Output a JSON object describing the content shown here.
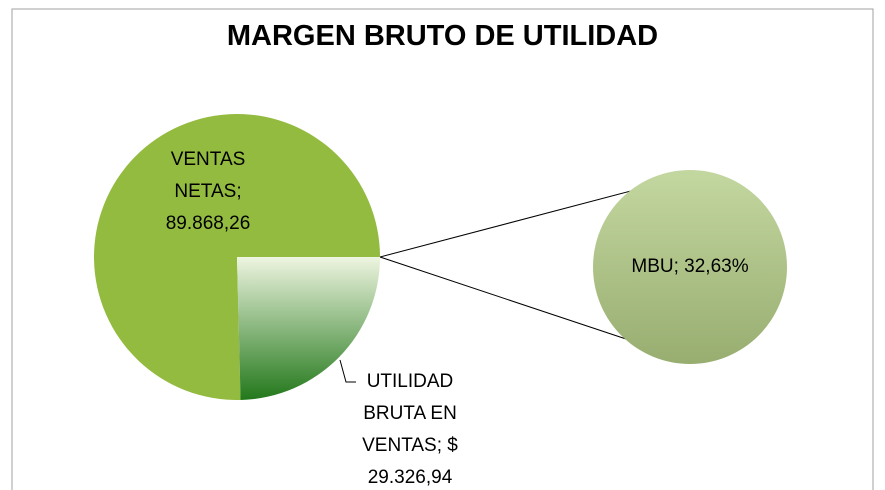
{
  "chart_data": {
    "type": "pie-of-pie",
    "title": "MARGEN BRUTO DE UTILIDAD",
    "values": [
      89868.26,
      29326.94
    ],
    "value_labels": [
      "VENTAS NETAS; 89.868,26",
      "UTILIDAD BRUTA EN VENTAS; $ 29.326,94"
    ],
    "colors": [
      "#93bb3f",
      [
        "#eef5e0",
        "#23781b"
      ]
    ],
    "secondary": {
      "values": [
        32.63
      ],
      "value_labels": [
        "MBU; 32,63%"
      ],
      "color": [
        "#c3d7a0",
        "#98ad70"
      ]
    }
  }
}
